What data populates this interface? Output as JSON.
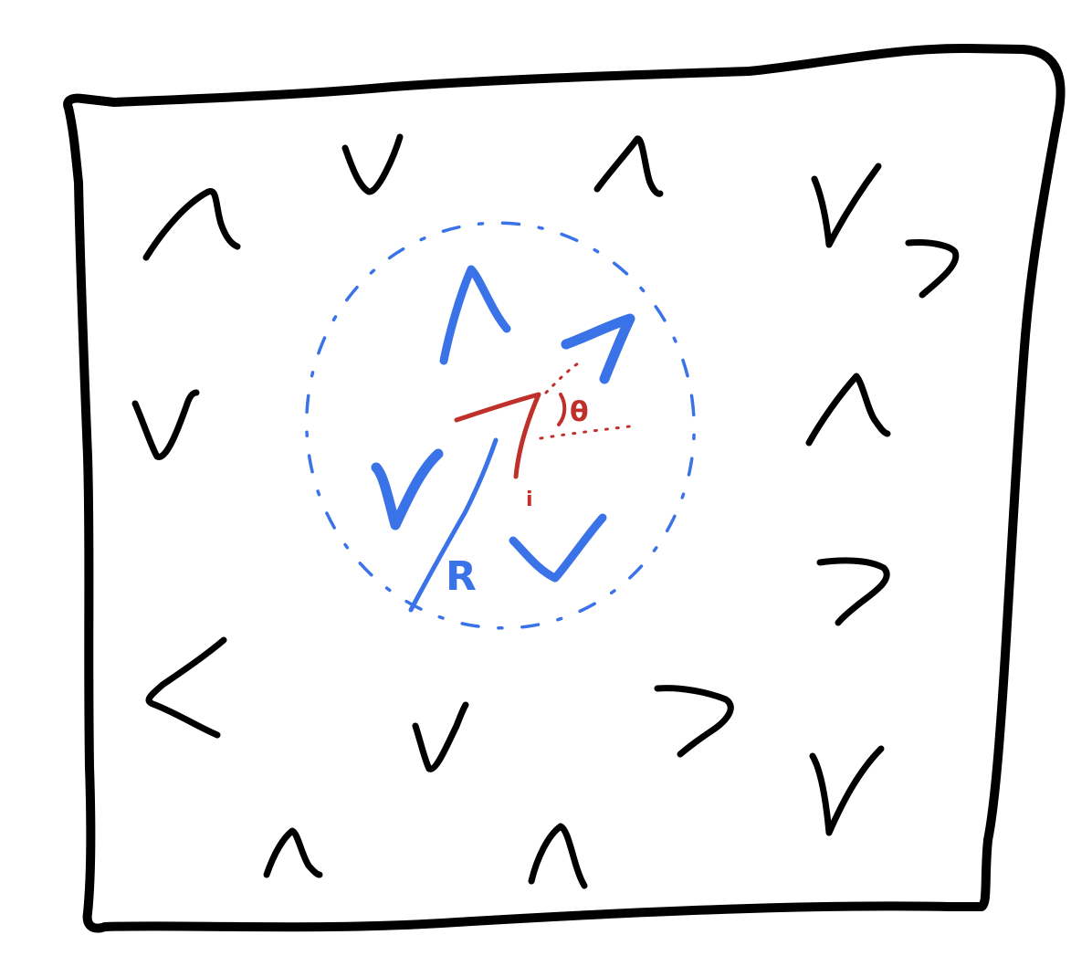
{
  "diagram": {
    "colors": {
      "background": "#ffffff",
      "ink": "#000000",
      "neighborhood": "#3a72e8",
      "angle": "#c0302a"
    },
    "labels": {
      "radius": "R",
      "angle": "θ",
      "index": "i"
    },
    "outer_chevrons": [
      {
        "id": "top-left-up",
        "dir": "up"
      },
      {
        "id": "top-down-1",
        "dir": "down"
      },
      {
        "id": "top-up-2",
        "dir": "up"
      },
      {
        "id": "top-right-down",
        "dir": "down"
      },
      {
        "id": "right-right-1",
        "dir": "right"
      },
      {
        "id": "right-up",
        "dir": "up"
      },
      {
        "id": "left-down",
        "dir": "down"
      },
      {
        "id": "right-right-2",
        "dir": "right"
      },
      {
        "id": "left-left",
        "dir": "left"
      },
      {
        "id": "bottom-down",
        "dir": "down"
      },
      {
        "id": "bottom-right",
        "dir": "right"
      },
      {
        "id": "bottom-right-down",
        "dir": "down"
      },
      {
        "id": "bottom-up-1",
        "dir": "up"
      },
      {
        "id": "bottom-up-2",
        "dir": "up"
      }
    ],
    "inner_chevrons": [
      {
        "id": "inner-up",
        "dir": "up"
      },
      {
        "id": "inner-upright",
        "dir": "up-right"
      },
      {
        "id": "inner-down-left",
        "dir": "down"
      },
      {
        "id": "inner-down-right",
        "dir": "down"
      }
    ]
  }
}
